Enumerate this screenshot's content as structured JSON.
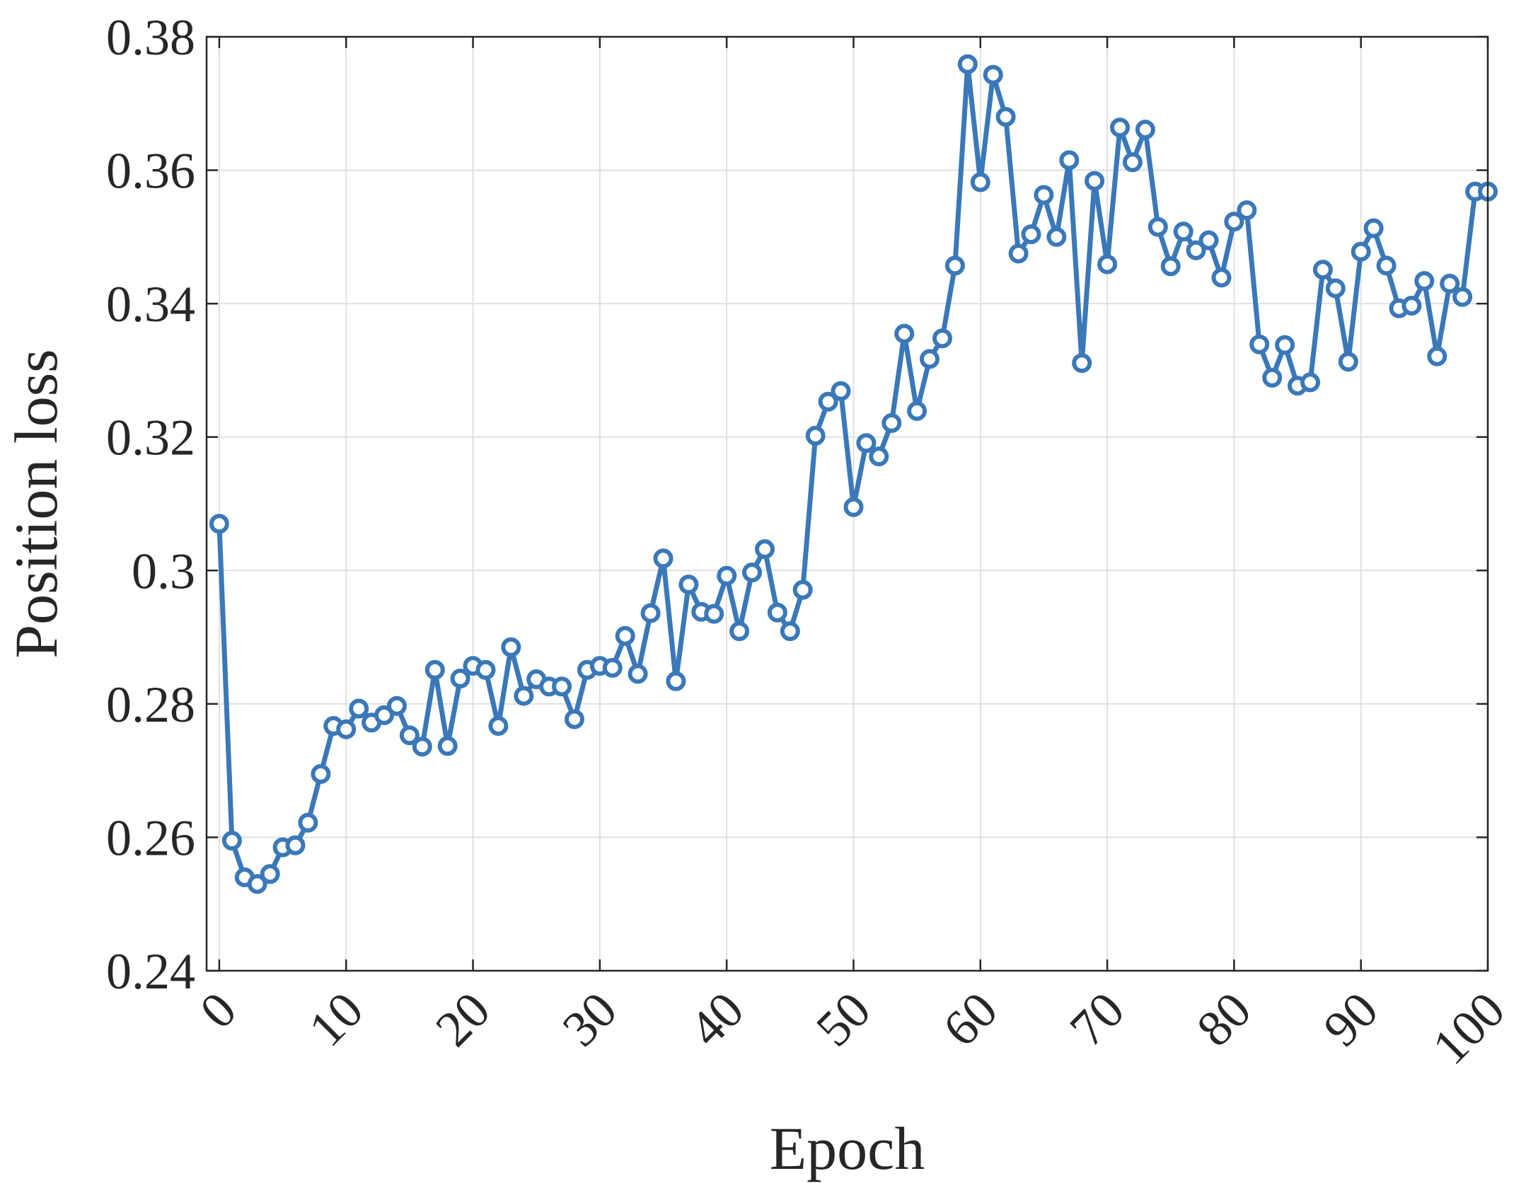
{
  "chart_data": {
    "type": "line",
    "title": "",
    "xlabel": "Epoch",
    "ylabel": "Position loss",
    "xlim": [
      -1,
      100
    ],
    "ylim": [
      0.24,
      0.38
    ],
    "xticks": [
      0,
      10,
      20,
      30,
      40,
      50,
      60,
      70,
      80,
      90,
      100
    ],
    "xtick_labels": [
      "0",
      "10",
      "20",
      "30",
      "40",
      "50",
      "60",
      "70",
      "80",
      "90",
      "100"
    ],
    "yticks": [
      0.24,
      0.26,
      0.28,
      0.3,
      0.32,
      0.34,
      0.36,
      0.38
    ],
    "ytick_labels": [
      "0.24",
      "0.26",
      "0.28",
      "0.3",
      "0.32",
      "0.34",
      "0.36",
      "0.38"
    ],
    "grid": true,
    "legend": "none",
    "colors": {
      "line": "#3a78b8",
      "grid": "#dedede",
      "axis": "#262626"
    },
    "marker": "circle",
    "series": [
      {
        "x": [
          0,
          1,
          2,
          3,
          4,
          5,
          6,
          7,
          8,
          9,
          10,
          11,
          12,
          13,
          14,
          15,
          16,
          17,
          18,
          19,
          20,
          21,
          22,
          23,
          24,
          25,
          26,
          27,
          28,
          29,
          30,
          31,
          32,
          33,
          34,
          35,
          36,
          37,
          38,
          39,
          40,
          41,
          42,
          43,
          44,
          45,
          46,
          47,
          48,
          49,
          50,
          51,
          52,
          53,
          54,
          55,
          56,
          57,
          58,
          59,
          60,
          61,
          62,
          63,
          64,
          65,
          66,
          67,
          68,
          69,
          70,
          71,
          72,
          73,
          74,
          75,
          76,
          77,
          78,
          79,
          80,
          81,
          82,
          83,
          84,
          85,
          86,
          87,
          88,
          89,
          90,
          91,
          92,
          93,
          94,
          95,
          96,
          97,
          98,
          99,
          100
        ],
        "y": [
          0.307,
          0.2595,
          0.254,
          0.253,
          0.2545,
          0.2585,
          0.2588,
          0.2622,
          0.2695,
          0.2767,
          0.2762,
          0.2793,
          0.2772,
          0.2783,
          0.2797,
          0.2753,
          0.2736,
          0.2851,
          0.2737,
          0.2838,
          0.2857,
          0.2851,
          0.2767,
          0.2885,
          0.2812,
          0.2837,
          0.2826,
          0.2826,
          0.2777,
          0.2851,
          0.2857,
          0.2854,
          0.2902,
          0.2845,
          0.2936,
          0.3018,
          0.2834,
          0.2979,
          0.2938,
          0.2935,
          0.2992,
          0.2909,
          0.2997,
          0.3032,
          0.2937,
          0.2909,
          0.2971,
          0.3202,
          0.3253,
          0.3269,
          0.3095,
          0.3191,
          0.3171,
          0.3221,
          0.3355,
          0.3239,
          0.3317,
          0.3348,
          0.3457,
          0.3759,
          0.3582,
          0.3743,
          0.368,
          0.3475,
          0.3504,
          0.3563,
          0.35,
          0.3615,
          0.3311,
          0.3584,
          0.3459,
          0.3664,
          0.3612,
          0.3661,
          0.3515,
          0.3456,
          0.3508,
          0.348,
          0.3495,
          0.3439,
          0.3523,
          0.354,
          0.3339,
          0.3289,
          0.3338,
          0.3277,
          0.3282,
          0.3451,
          0.3423,
          0.3313,
          0.3478,
          0.3513,
          0.3457,
          0.3393,
          0.3397,
          0.3434,
          0.3321,
          0.343,
          0.341,
          0.3568,
          0.3568
        ]
      }
    ]
  }
}
